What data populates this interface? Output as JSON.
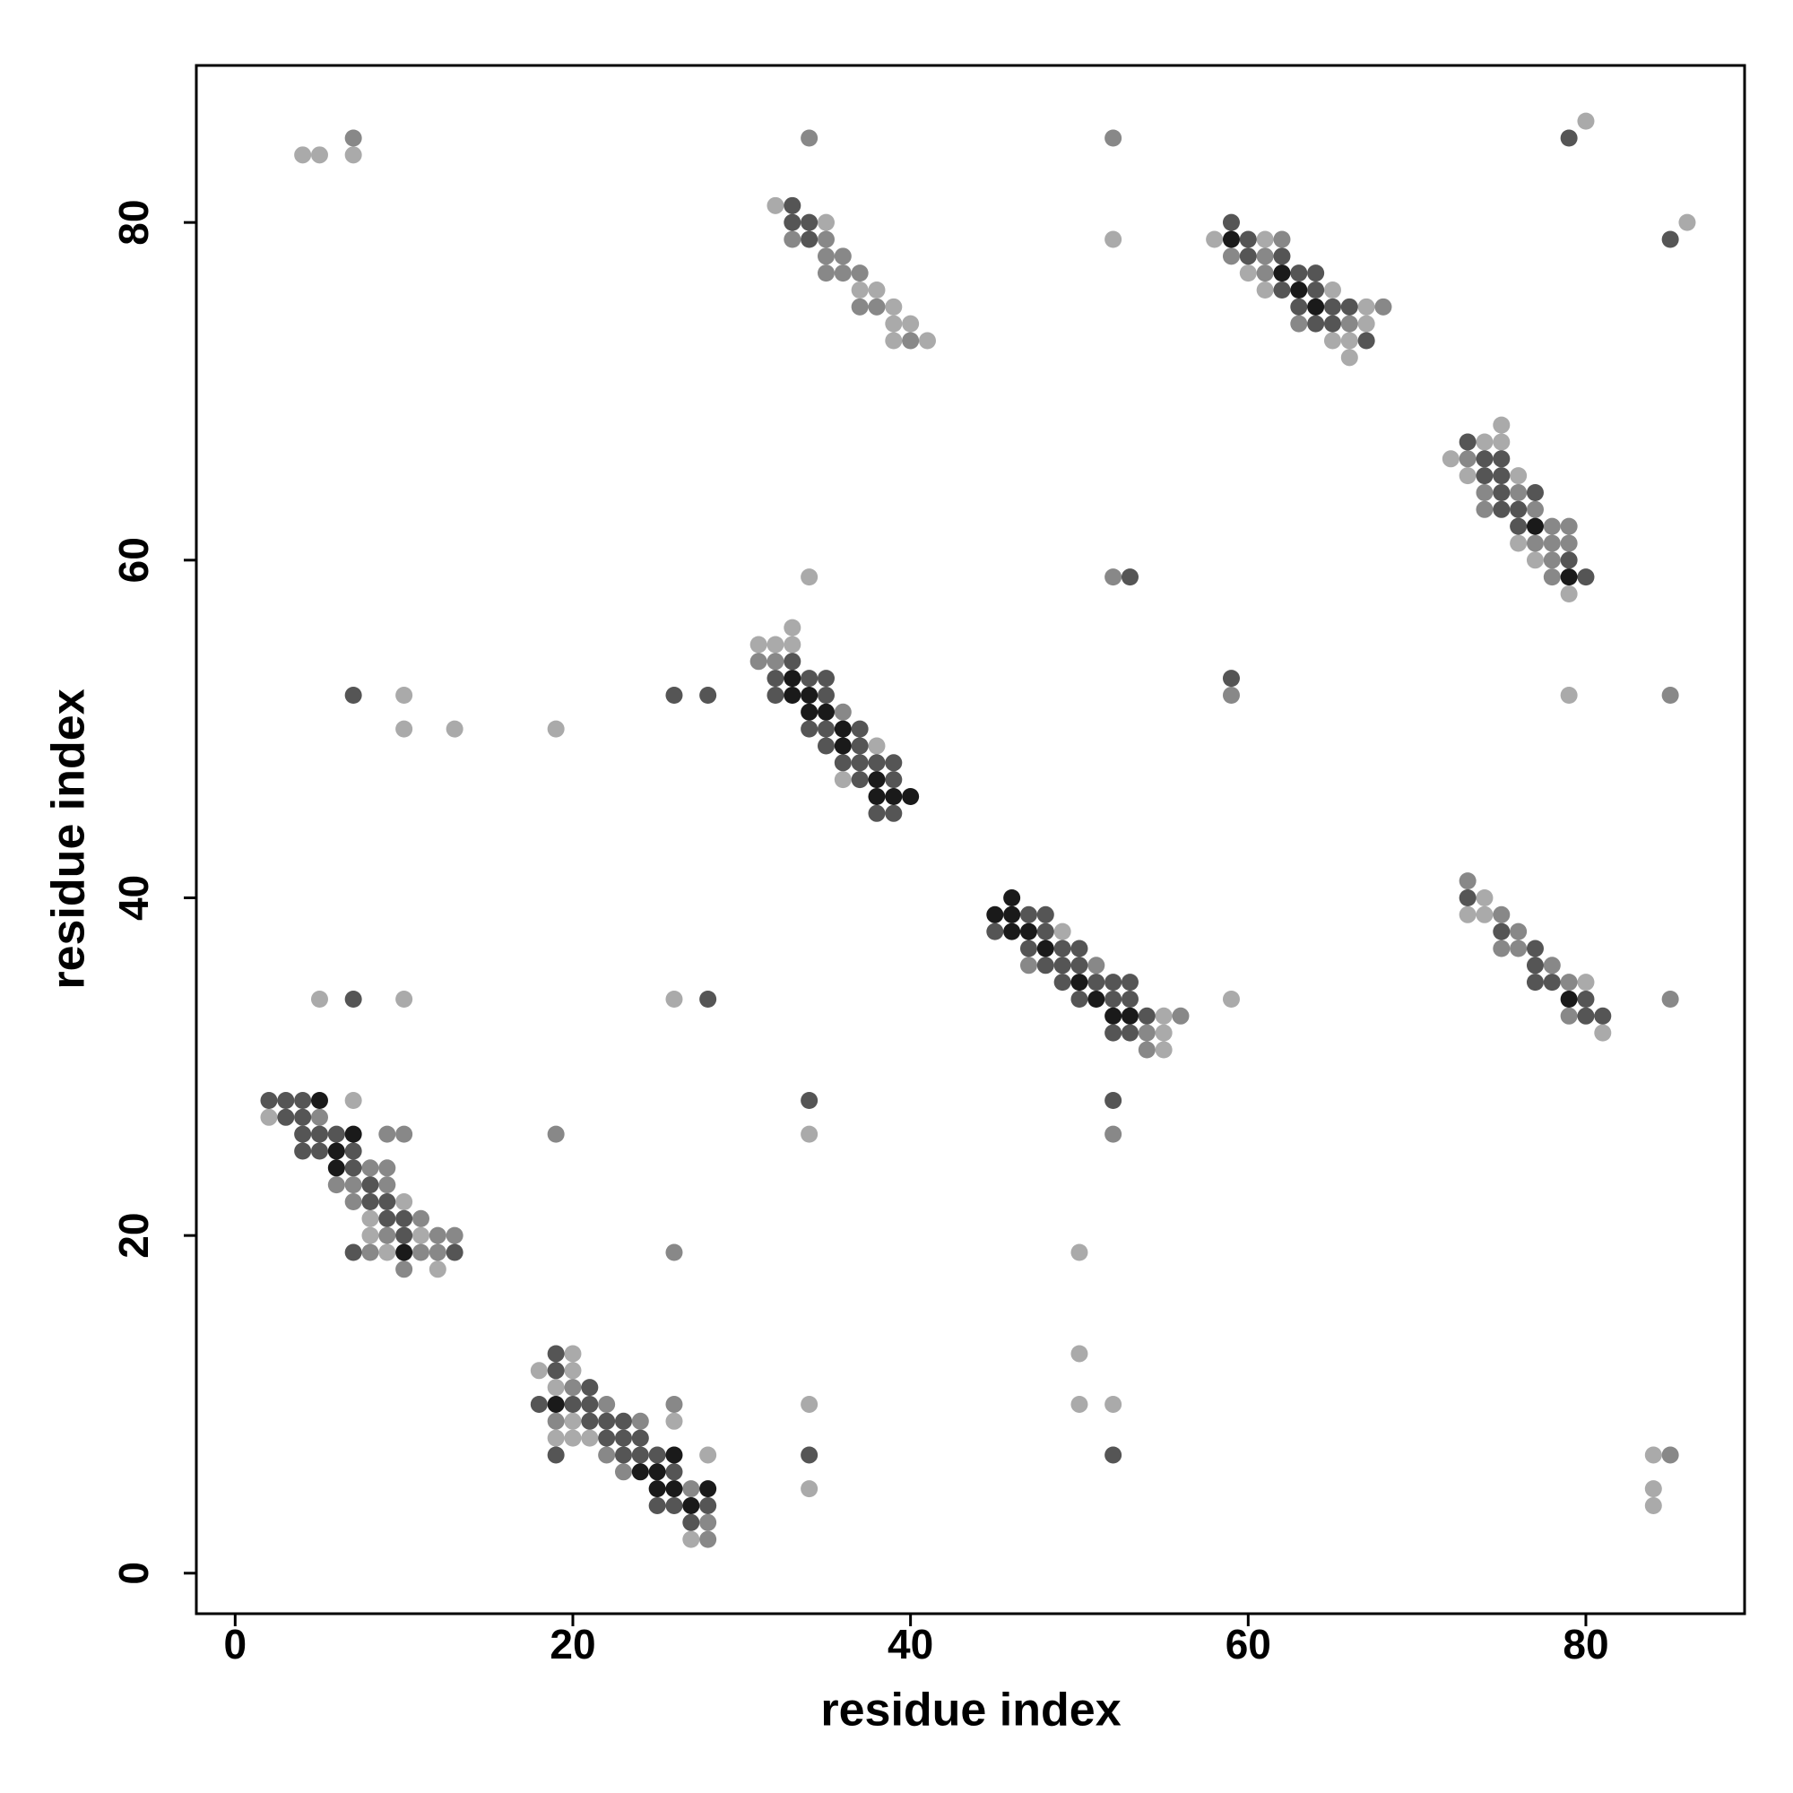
{
  "chart_data": {
    "type": "scatter",
    "xlabel": "residue index",
    "ylabel": "residue index",
    "xlim": [
      -2.3,
      89.4
    ],
    "ylim": [
      -2.4,
      89.3
    ],
    "xticks": [
      0,
      20,
      40,
      60,
      80
    ],
    "yticks": [
      0,
      20,
      40,
      60,
      80
    ],
    "series": [
      {
        "color": "#aaaaaa",
        "x": [
          4,
          5,
          7,
          32,
          35,
          37,
          38,
          39,
          39,
          40,
          39,
          41,
          52,
          58,
          61,
          60,
          61,
          65,
          67,
          67,
          65,
          66,
          66,
          80,
          86,
          75,
          74,
          75,
          72,
          73,
          76,
          76,
          77,
          79,
          34,
          33,
          31,
          32,
          33,
          38,
          36,
          10,
          10,
          13,
          19,
          79,
          74,
          73,
          74,
          80,
          81,
          49,
          55,
          55,
          55,
          59,
          5,
          10,
          26,
          34,
          7,
          2,
          10,
          8,
          8,
          11,
          9,
          12,
          50,
          20,
          18,
          20,
          19,
          20,
          19,
          20,
          21,
          28,
          27,
          26,
          34,
          34,
          50,
          50,
          52,
          84,
          84,
          84
        ],
        "y": [
          84,
          84,
          84,
          81,
          80,
          76,
          76,
          75,
          74,
          74,
          73,
          73,
          79,
          79,
          79,
          77,
          76,
          76,
          75,
          74,
          73,
          73,
          72,
          86,
          80,
          68,
          67,
          67,
          66,
          65,
          65,
          61,
          60,
          58,
          59,
          56,
          55,
          55,
          55,
          49,
          47,
          52,
          50,
          50,
          50,
          52,
          40,
          39,
          39,
          35,
          32,
          38,
          33,
          32,
          31,
          34,
          34,
          34,
          34,
          26,
          28,
          27,
          22,
          21,
          20,
          20,
          19,
          18,
          19,
          13,
          12,
          12,
          11,
          9,
          8,
          8,
          8,
          7,
          2,
          9,
          10,
          5,
          13,
          10,
          10,
          7,
          5,
          4
        ]
      },
      {
        "color": "#888888",
        "x": [
          7,
          34,
          33,
          35,
          35,
          36,
          35,
          36,
          37,
          37,
          38,
          40,
          52,
          62,
          59,
          61,
          61,
          68,
          63,
          66,
          73,
          74,
          76,
          74,
          77,
          78,
          79,
          77,
          78,
          79,
          78,
          78,
          31,
          32,
          36,
          52,
          59,
          85,
          73,
          75,
          76,
          75,
          76,
          78,
          79,
          79,
          85,
          47,
          51,
          54,
          54,
          56,
          52,
          19,
          5,
          9,
          10,
          8,
          9,
          6,
          7,
          9,
          7,
          11,
          9,
          12,
          13,
          8,
          11,
          12,
          10,
          26,
          20,
          22,
          19,
          24,
          22,
          23,
          27,
          28,
          28,
          26,
          85
        ],
        "y": [
          85,
          85,
          79,
          79,
          78,
          78,
          77,
          77,
          77,
          75,
          75,
          73,
          85,
          79,
          78,
          78,
          77,
          75,
          74,
          74,
          66,
          64,
          64,
          63,
          63,
          62,
          62,
          61,
          61,
          61,
          60,
          59,
          54,
          54,
          51,
          59,
          52,
          52,
          41,
          39,
          38,
          37,
          37,
          36,
          35,
          33,
          34,
          36,
          36,
          32,
          31,
          33,
          26,
          26,
          27,
          26,
          26,
          24,
          24,
          23,
          23,
          23,
          22,
          21,
          20,
          20,
          20,
          19,
          19,
          19,
          18,
          19,
          11,
          10,
          9,
          9,
          7,
          6,
          5,
          3,
          2,
          10,
          7
        ]
      },
      {
        "color": "#555555",
        "x": [
          33,
          33,
          34,
          34,
          59,
          60,
          60,
          62,
          63,
          64,
          62,
          64,
          63,
          65,
          66,
          64,
          65,
          67,
          79,
          85,
          73,
          74,
          75,
          74,
          75,
          75,
          77,
          75,
          76,
          76,
          79,
          80,
          53,
          33,
          32,
          34,
          35,
          32,
          35,
          34,
          35,
          37,
          35,
          37,
          36,
          37,
          38,
          39,
          37,
          39,
          38,
          39,
          7,
          26,
          28,
          59,
          73,
          75,
          77,
          77,
          77,
          78,
          80,
          80,
          81,
          47,
          48,
          45,
          48,
          47,
          49,
          50,
          48,
          49,
          50,
          49,
          51,
          52,
          53,
          50,
          52,
          53,
          54,
          52,
          53,
          7,
          28,
          34,
          52,
          2,
          3,
          4,
          3,
          4,
          4,
          5,
          6,
          4,
          5,
          7,
          7,
          8,
          8,
          9,
          9,
          10,
          10,
          7,
          13,
          19,
          19,
          21,
          18,
          20,
          21,
          21,
          22,
          23,
          22,
          23,
          24,
          19,
          23,
          24,
          25,
          26,
          25,
          26,
          28,
          27,
          34,
          52
        ],
        "y": [
          81,
          80,
          80,
          79,
          80,
          79,
          78,
          78,
          77,
          77,
          76,
          76,
          75,
          75,
          75,
          74,
          74,
          73,
          85,
          79,
          67,
          66,
          66,
          65,
          65,
          64,
          64,
          63,
          63,
          62,
          60,
          59,
          59,
          54,
          53,
          53,
          53,
          52,
          52,
          50,
          50,
          50,
          49,
          49,
          48,
          48,
          48,
          48,
          47,
          47,
          45,
          45,
          52,
          52,
          52,
          53,
          40,
          38,
          37,
          36,
          35,
          35,
          34,
          33,
          33,
          39,
          39,
          38,
          38,
          37,
          37,
          37,
          36,
          36,
          36,
          35,
          35,
          35,
          35,
          34,
          34,
          34,
          33,
          32,
          32,
          34,
          34,
          28,
          28,
          28,
          28,
          28,
          27,
          27,
          26,
          26,
          26,
          25,
          25,
          25,
          24,
          23,
          22,
          22,
          21,
          21,
          20,
          19,
          19,
          13,
          12,
          11,
          10,
          10,
          10,
          9,
          9,
          9,
          8,
          8,
          8,
          7,
          7,
          7,
          7,
          6,
          4,
          4,
          4,
          3,
          7,
          7
        ]
      },
      {
        "color": "#1a1a1a",
        "x": [
          59,
          62,
          63,
          64,
          77,
          79,
          33,
          33,
          34,
          34,
          35,
          36,
          36,
          38,
          38,
          39,
          40,
          79,
          46,
          45,
          46,
          46,
          47,
          48,
          50,
          51,
          52,
          53,
          5,
          7,
          6,
          6,
          10,
          19,
          26,
          24,
          25,
          25,
          26,
          28,
          27
        ],
        "y": [
          79,
          77,
          76,
          75,
          62,
          59,
          53,
          52,
          52,
          51,
          51,
          50,
          49,
          47,
          46,
          46,
          46,
          34,
          40,
          39,
          39,
          38,
          38,
          37,
          35,
          34,
          33,
          33,
          28,
          26,
          25,
          24,
          19,
          10,
          7,
          6,
          6,
          5,
          5,
          5,
          4
        ]
      }
    ]
  }
}
